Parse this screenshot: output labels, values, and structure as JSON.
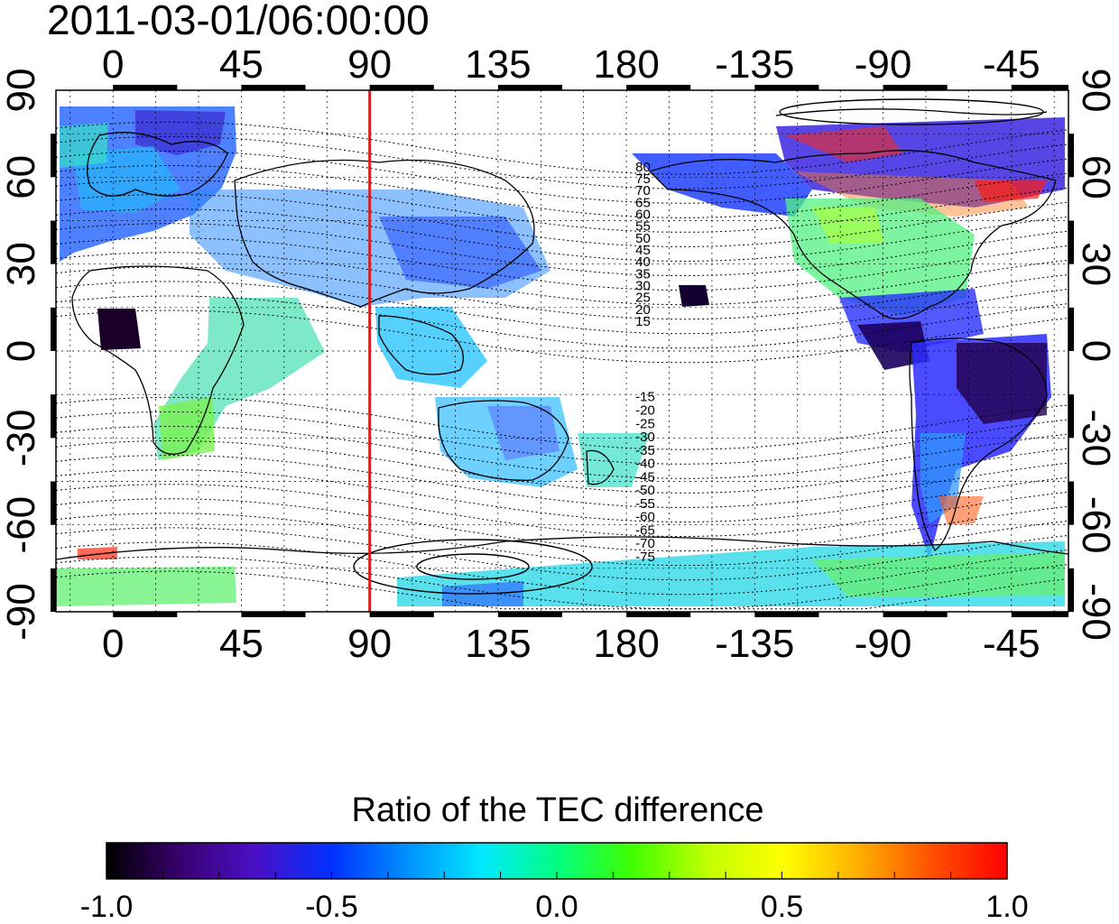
{
  "title": "2011-03-01/06:00:00",
  "map": {
    "lon_ticks_top": [
      "0",
      "45",
      "90",
      "135",
      "180",
      "-135",
      "-90",
      "-45"
    ],
    "lon_ticks_bottom": [
      "0",
      "45",
      "90",
      "135",
      "180",
      "-135",
      "-90",
      "-45"
    ],
    "lat_ticks_left": [
      "90",
      "60",
      "30",
      "0",
      "-30",
      "-60",
      "-90"
    ],
    "lat_ticks_right": [
      "90",
      "60",
      "30",
      "0",
      "-30",
      "-60",
      "-90"
    ],
    "lon_range": [
      -20,
      335
    ],
    "lat_range": [
      -90,
      90
    ],
    "grid": true,
    "marker_line": {
      "longitude": 90,
      "color": "#d42020"
    },
    "contour_labels_north": [
      "80",
      "75",
      "70",
      "65",
      "60",
      "55",
      "50",
      "45",
      "40",
      "35",
      "30",
      "25",
      "20",
      "15"
    ],
    "contour_labels_south": [
      "-15",
      "-20",
      "-25",
      "-30",
      "-35",
      "-40",
      "-45",
      "-50",
      "-55",
      "-60",
      "-65",
      "-70",
      "-75"
    ],
    "colors": {
      "frame": "#000000",
      "coast": "#000000",
      "marker": "#d42020"
    }
  },
  "colorbar": {
    "title": "Ratio of the TEC difference",
    "tick_labels": [
      "-1.0",
      "-0.5",
      "0.0",
      "0.5",
      "1.0"
    ],
    "range": [
      -1.0,
      1.0
    ],
    "colormap": [
      "#000000",
      "#3a0070",
      "#4a10c8",
      "#0030ff",
      "#0090ff",
      "#00e8ff",
      "#00ff80",
      "#40ff00",
      "#c0ff00",
      "#ffff00",
      "#ffb000",
      "#ff5000",
      "#ff0000"
    ]
  }
}
